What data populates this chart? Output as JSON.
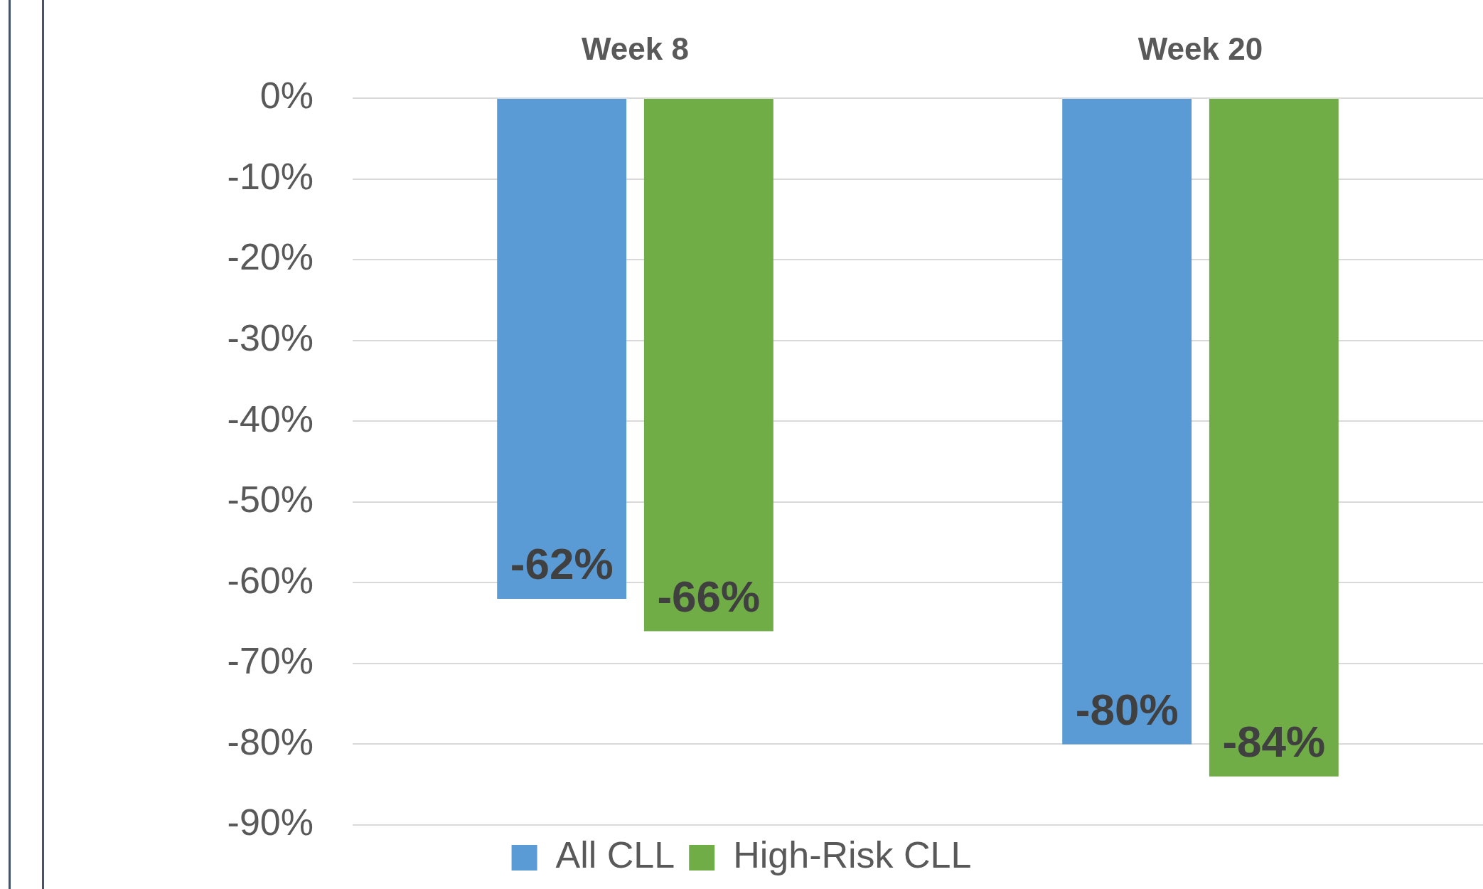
{
  "chart_data": {
    "type": "bar",
    "categories": [
      "Week 8",
      "Week 20"
    ],
    "series": [
      {
        "name": "All CLL",
        "color": "#5b9bd5",
        "values": [
          -62,
          -80
        ],
        "value_labels": [
          "-62%",
          "-80%"
        ]
      },
      {
        "name": "High-Risk CLL",
        "color": "#70ad47",
        "values": [
          -66,
          -84
        ],
        "value_labels": [
          "-66%",
          "-84%"
        ]
      }
    ],
    "ylim": [
      -90,
      0
    ],
    "yticks": [
      {
        "value": 0,
        "label": "0%"
      },
      {
        "value": -10,
        "label": "-10%"
      },
      {
        "value": -20,
        "label": "-20%"
      },
      {
        "value": -30,
        "label": "-30%"
      },
      {
        "value": -40,
        "label": "-40%"
      },
      {
        "value": -50,
        "label": "-50%"
      },
      {
        "value": -60,
        "label": "-60%"
      },
      {
        "value": -70,
        "label": "-70%"
      },
      {
        "value": -80,
        "label": "-80%"
      },
      {
        "value": -90,
        "label": "-90%"
      }
    ],
    "grid": "y",
    "legend": "bottom"
  }
}
